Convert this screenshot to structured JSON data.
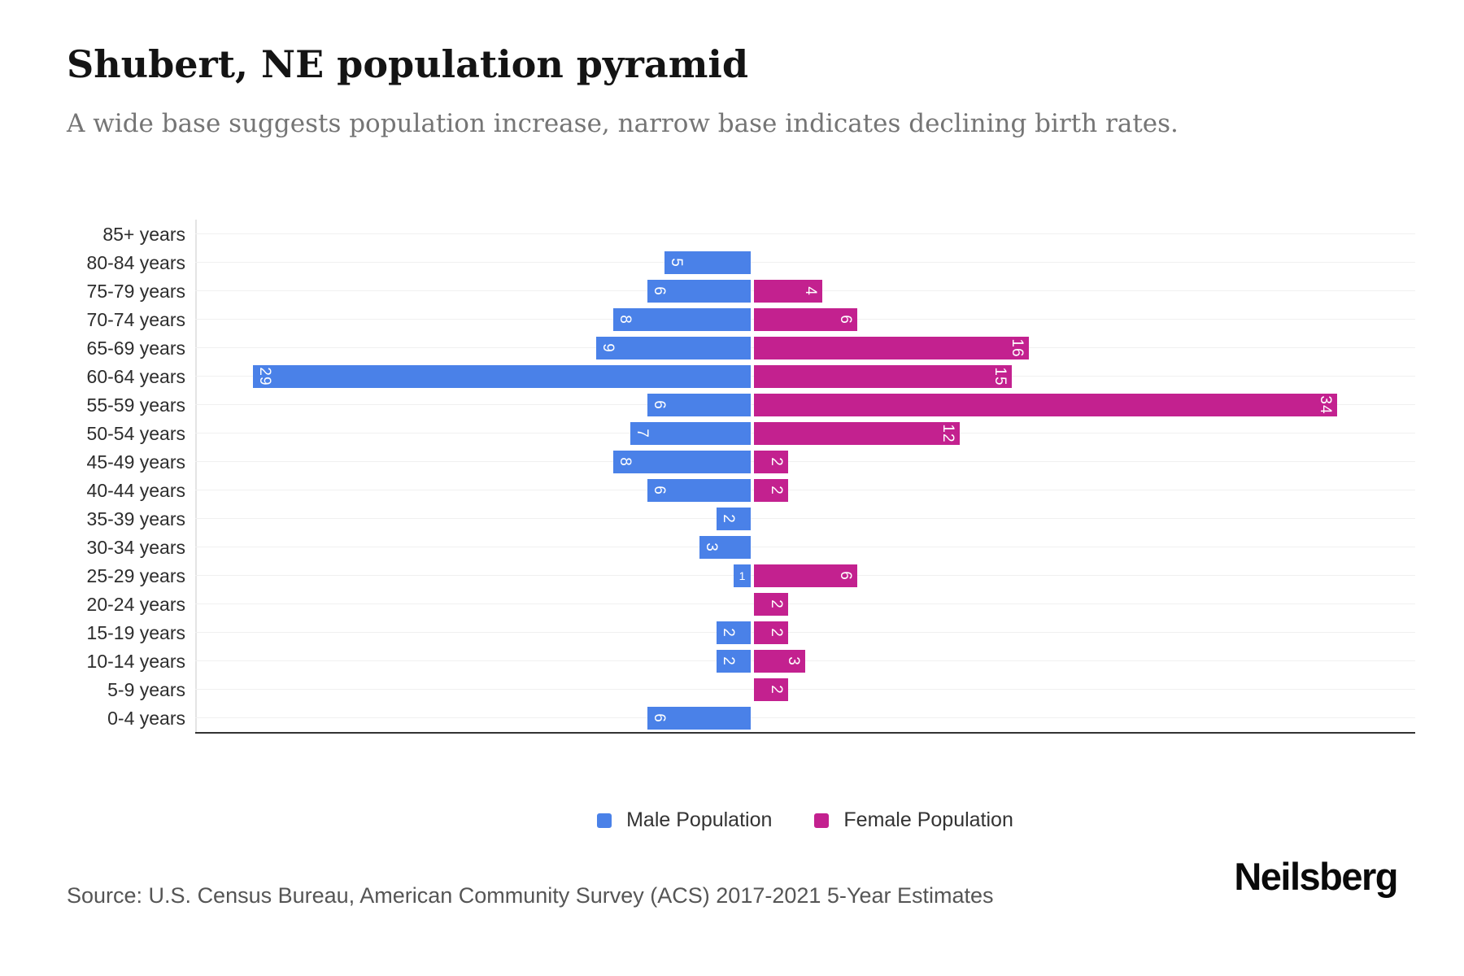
{
  "page": {
    "title": "Shubert, NE population pyramid",
    "subtitle": "A wide base suggests population increase, narrow base indicates declining birth rates.",
    "source": "Source: U.S. Census Bureau, American Community Survey (ACS) 2017-2021 5-Year Estimates",
    "brand": "Neilsberg"
  },
  "chart_data": {
    "type": "bar",
    "variant": "population-pyramid-diverging-horizontal",
    "title": "Shubert, NE population pyramid",
    "subtitle": "A wide base suggests population increase, narrow base indicates declining birth rates.",
    "categories": [
      "85+ years",
      "80-84 years",
      "75-79 years",
      "70-74 years",
      "65-69 years",
      "60-64 years",
      "55-59 years",
      "50-54 years",
      "45-49 years",
      "40-44 years",
      "35-39 years",
      "30-34 years",
      "25-29 years",
      "20-24 years",
      "15-19 years",
      "10-14 years",
      "5-9 years",
      "0-4 years"
    ],
    "series": [
      {
        "name": "Male Population",
        "color": "#4a81e8",
        "direction": "left",
        "values": [
          0,
          5,
          6,
          8,
          9,
          29,
          6,
          7,
          8,
          6,
          2,
          3,
          1,
          0,
          2,
          2,
          0,
          6
        ]
      },
      {
        "name": "Female Population",
        "color": "#c3218f",
        "direction": "right",
        "values": [
          0,
          0,
          4,
          6,
          16,
          15,
          34,
          12,
          2,
          2,
          0,
          0,
          6,
          2,
          2,
          3,
          2,
          0
        ]
      }
    ],
    "value_labels": "inside-outer-end, white, rotated 90deg",
    "legend": {
      "position": "bottom-center",
      "items": [
        "Male Population",
        "Female Population"
      ]
    },
    "grid": {
      "horizontal": true,
      "vertical": false,
      "center_divider": true
    },
    "x_axis": {
      "tick_labels_shown": false,
      "baseline_shown": true
    },
    "xlim_units": {
      "male_max": 29,
      "female_max": 34
    }
  },
  "colors": {
    "male": "#4a81e8",
    "female": "#c3218f",
    "gridline": "#f0f0f0",
    "center_line": "#e4e4e4",
    "baseline": "#333333",
    "title": "#141414",
    "subtitle": "#757575",
    "axis_label": "#2d2d2d",
    "source": "#555555",
    "brand": "#0a0a0a"
  }
}
